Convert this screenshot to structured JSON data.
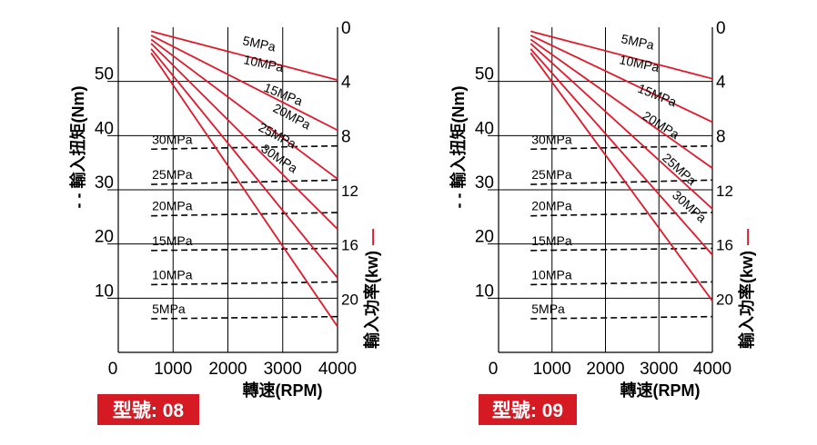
{
  "colors": {
    "torque_line": "#000000",
    "power_line": "#e0192a",
    "badge_bg": "#d51a24",
    "badge_text": "#ffffff",
    "grid": "#000000"
  },
  "chart_data": [
    {
      "type": "line",
      "model_badge": "型號: 08",
      "x": [
        600,
        4000
      ],
      "xticks": [
        "0",
        "1000",
        "2000",
        "3000",
        "4000"
      ],
      "xlim": [
        0,
        4000
      ],
      "xlabel": "轉速(RPM)",
      "ylabel_left": "輸入扭矩(Nm)",
      "ylabel_left_marker": "- -",
      "ylim_left": [
        0,
        60
      ],
      "yticks_left": [
        "10",
        "20",
        "30",
        "40",
        "50"
      ],
      "ylabel_right": "輸入功率(kw)",
      "ylabel_right_marker": "—",
      "ylim_right": [
        0,
        24
      ],
      "yticks_right": [
        "0",
        "4",
        "8",
        "12",
        "16",
        "20"
      ],
      "torque_series": [
        {
          "name": "30MPa",
          "values": [
            37.5,
            38.1
          ]
        },
        {
          "name": "25MPa",
          "values": [
            31.0,
            31.8
          ]
        },
        {
          "name": "20MPa",
          "values": [
            25.2,
            25.8
          ]
        },
        {
          "name": "15MPa",
          "values": [
            18.8,
            19.2
          ]
        },
        {
          "name": "10MPa",
          "values": [
            12.5,
            13.0
          ]
        },
        {
          "name": "5MPa",
          "values": [
            6.2,
            6.6
          ]
        }
      ],
      "power_series": [
        {
          "name": "5MPa",
          "values": [
            0.3,
            3.9
          ]
        },
        {
          "name": "10MPa",
          "values": [
            0.6,
            7.6
          ]
        },
        {
          "name": "15MPa",
          "values": [
            0.9,
            11.2
          ]
        },
        {
          "name": "20MPa",
          "values": [
            1.2,
            14.9
          ]
        },
        {
          "name": "25MPa",
          "values": [
            1.6,
            18.5
          ]
        },
        {
          "name": "30MPa",
          "values": [
            1.9,
            22.1
          ]
        }
      ]
    },
    {
      "type": "line",
      "model_badge": "型號: 09",
      "x": [
        600,
        4000
      ],
      "xticks": [
        "0",
        "1000",
        "2000",
        "3000",
        "4000"
      ],
      "xlim": [
        0,
        4000
      ],
      "xlabel": "轉速(RPM)",
      "ylabel_left": "輸入扭矩(Nm)",
      "ylabel_left_marker": "- -",
      "ylim_left": [
        0,
        60
      ],
      "yticks_left": [
        "10",
        "20",
        "30",
        "40",
        "50"
      ],
      "ylabel_right": "輸入功率(kw)",
      "ylabel_right_marker": "—",
      "ylim_right": [
        0,
        24
      ],
      "yticks_right": [
        "0",
        "4",
        "8",
        "12",
        "16",
        "20"
      ],
      "torque_series": [
        {
          "name": "30MPa",
          "values": [
            37.5,
            38.1
          ]
        },
        {
          "name": "25MPa",
          "values": [
            31.0,
            31.8
          ]
        },
        {
          "name": "20MPa",
          "values": [
            25.2,
            25.8
          ]
        },
        {
          "name": "15MPa",
          "values": [
            18.8,
            19.2
          ]
        },
        {
          "name": "10MPa",
          "values": [
            12.5,
            13.0
          ]
        },
        {
          "name": "5MPa",
          "values": [
            6.2,
            6.6
          ]
        }
      ],
      "power_series": [
        {
          "name": "5MPa",
          "values": [
            0.3,
            3.8
          ]
        },
        {
          "name": "10MPa",
          "values": [
            0.6,
            7.0
          ]
        },
        {
          "name": "15MPa",
          "values": [
            0.9,
            10.4
          ]
        },
        {
          "name": "20MPa",
          "values": [
            1.2,
            13.4
          ]
        },
        {
          "name": "25MPa",
          "values": [
            1.6,
            16.8
          ]
        },
        {
          "name": "30MPa",
          "values": [
            1.9,
            20.2
          ]
        }
      ]
    }
  ]
}
